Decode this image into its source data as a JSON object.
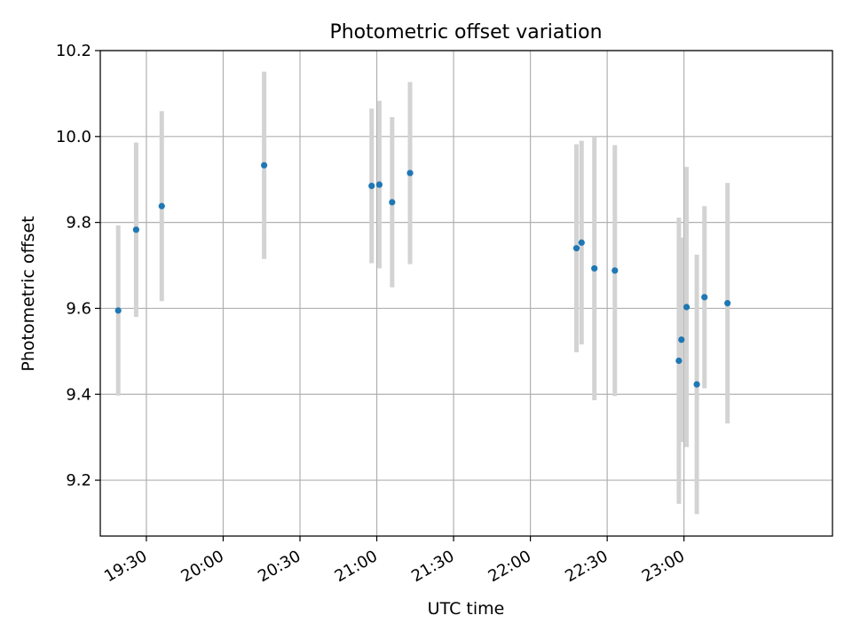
{
  "chart_data": {
    "type": "scatter",
    "title": "Photometric offset variation",
    "xlabel": "UTC time",
    "ylabel": "Photometric offset",
    "xlim": [
      "19:12",
      "23:58"
    ],
    "ylim": [
      9.07,
      10.2
    ],
    "xticks": [
      "19:30",
      "20:00",
      "20:30",
      "21:00",
      "21:30",
      "22:00",
      "22:30",
      "23:00"
    ],
    "yticks": [
      9.2,
      9.4,
      9.6,
      9.8,
      10.0,
      10.2
    ],
    "ytick_labels": [
      "9.2",
      "9.4",
      "9.6",
      "9.8",
      "10.0",
      "10.2"
    ],
    "grid": true,
    "series": [
      {
        "marker_color": "#1f77b4",
        "errorbar_color": "#d3d3d3",
        "points": [
          {
            "x": "19:19",
            "y": 9.595,
            "err": 0.198
          },
          {
            "x": "19:26",
            "y": 9.783,
            "err": 0.203
          },
          {
            "x": "19:36",
            "y": 9.838,
            "err": 0.221
          },
          {
            "x": "20:16",
            "y": 9.933,
            "err": 0.218
          },
          {
            "x": "20:58",
            "y": 9.885,
            "err": 0.18
          },
          {
            "x": "21:01",
            "y": 9.888,
            "err": 0.195
          },
          {
            "x": "21:06",
            "y": 9.847,
            "err": 0.198
          },
          {
            "x": "21:13",
            "y": 9.915,
            "err": 0.212
          },
          {
            "x": "22:18",
            "y": 9.74,
            "err": 0.242
          },
          {
            "x": "22:20",
            "y": 9.753,
            "err": 0.237
          },
          {
            "x": "22:25",
            "y": 9.693,
            "err": 0.307
          },
          {
            "x": "22:33",
            "y": 9.688,
            "err": 0.292
          },
          {
            "x": "22:58",
            "y": 9.478,
            "err": 0.333
          },
          {
            "x": "22:59",
            "y": 9.527,
            "err": 0.238
          },
          {
            "x": "23:01",
            "y": 9.603,
            "err": 0.326
          },
          {
            "x": "23:05",
            "y": 9.423,
            "err": 0.302
          },
          {
            "x": "23:08",
            "y": 9.626,
            "err": 0.212
          },
          {
            "x": "23:17",
            "y": 9.612,
            "err": 0.28
          }
        ]
      }
    ]
  }
}
